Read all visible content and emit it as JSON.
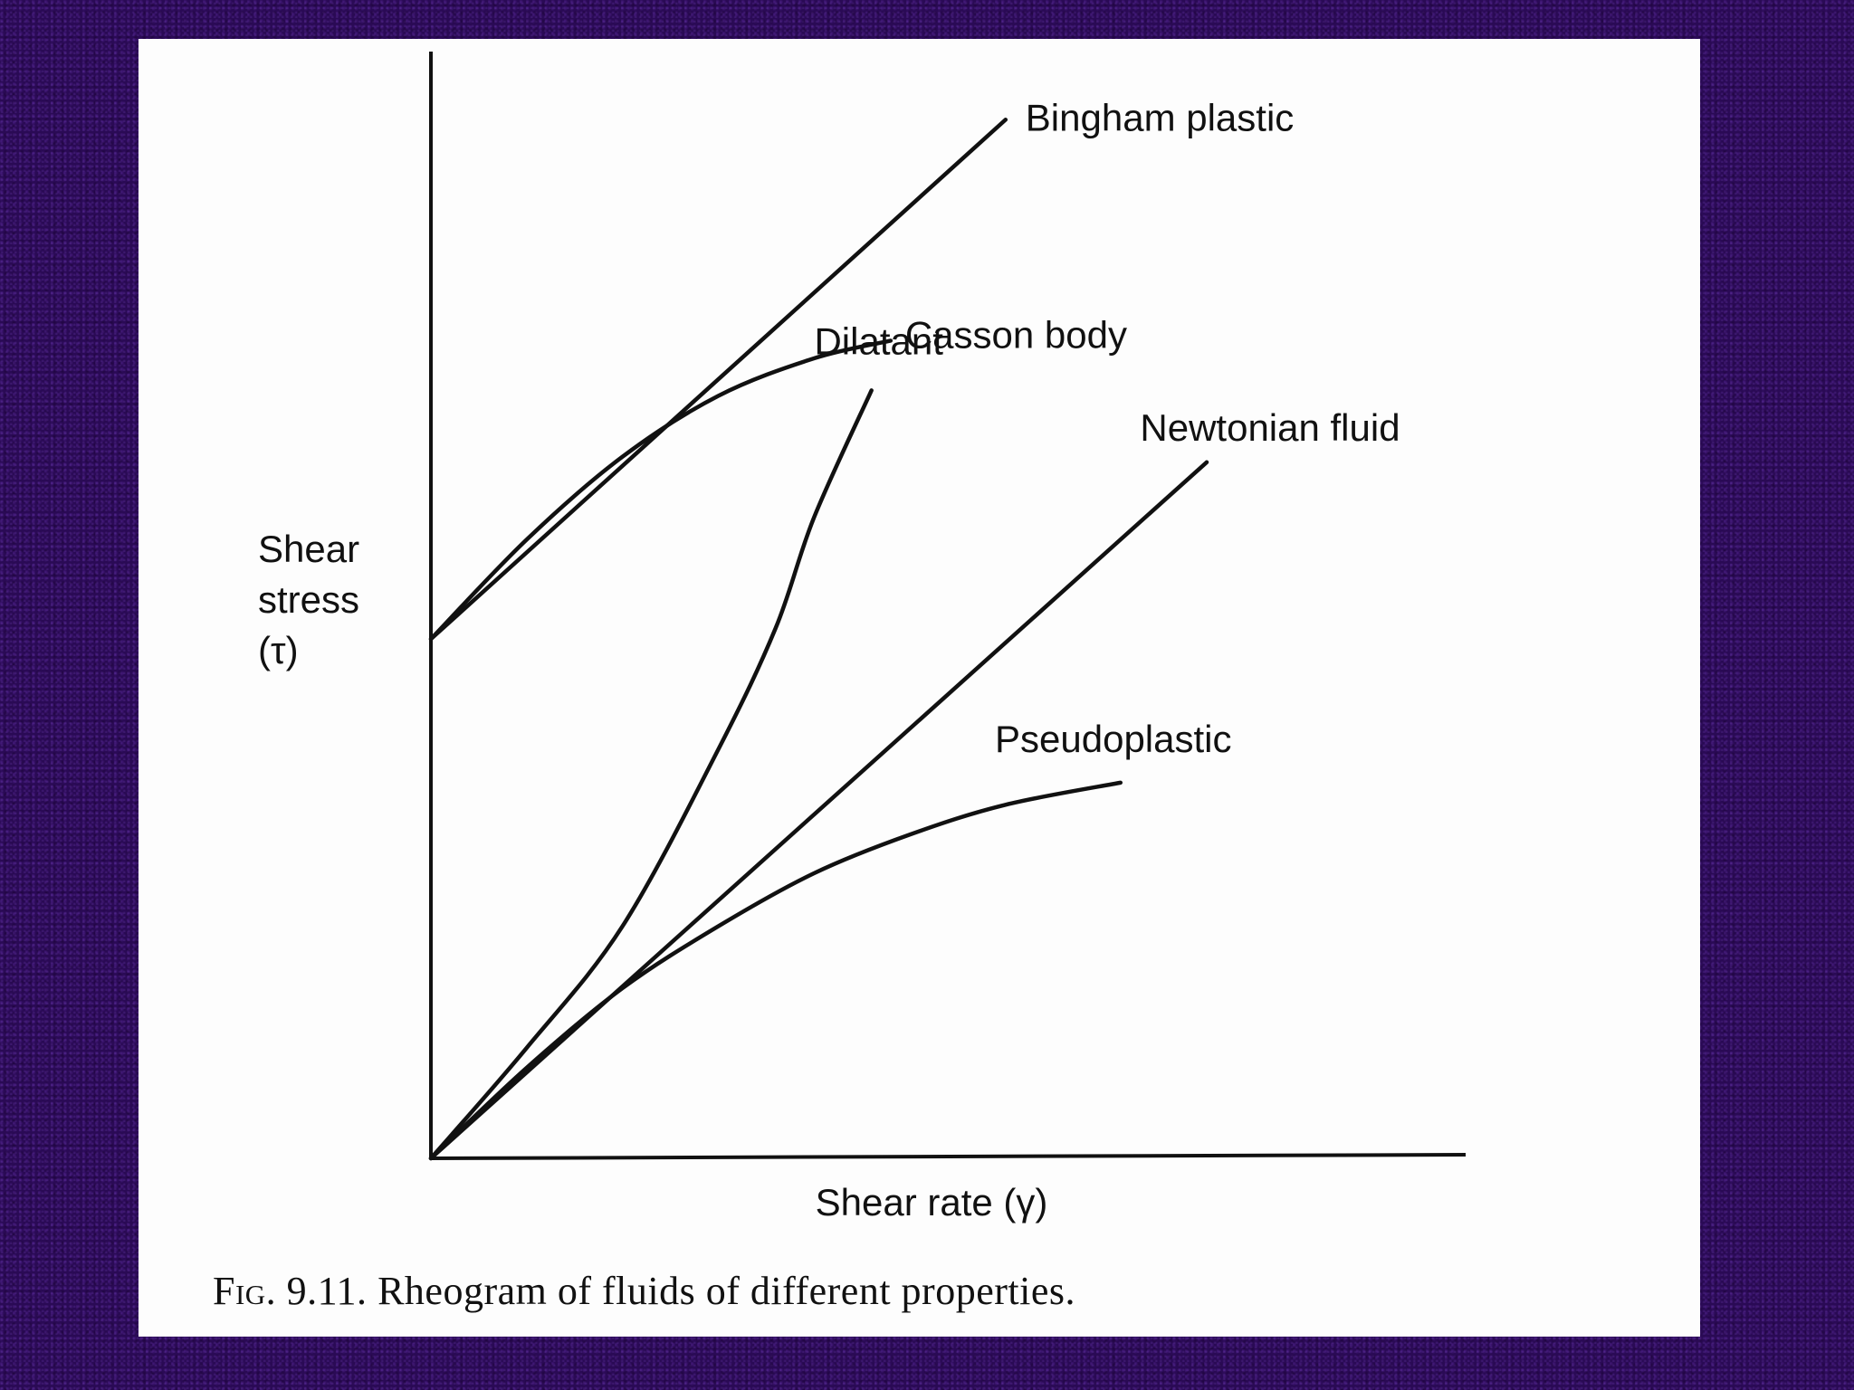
{
  "chart_data": {
    "type": "line",
    "title": "",
    "xlabel": "Shear rate (γ)",
    "ylabel_lines": [
      "Shear",
      "stress",
      "(τ)"
    ],
    "xlim": [
      0,
      100
    ],
    "ylim": [
      0,
      100
    ],
    "grid": false,
    "legend": "none (curves labeled directly at their ends)",
    "series": [
      {
        "name": "Bingham plastic",
        "points": [
          [
            0,
            47
          ],
          [
            60,
            94
          ]
        ]
      },
      {
        "name": "Casson body",
        "points": [
          [
            0,
            47
          ],
          [
            10,
            56
          ],
          [
            20,
            63.5
          ],
          [
            30,
            69
          ],
          [
            40,
            72.4
          ],
          [
            48,
            74
          ]
        ]
      },
      {
        "name": "Dilatant",
        "points": [
          [
            0,
            0
          ],
          [
            10,
            10
          ],
          [
            20,
            21
          ],
          [
            30,
            37
          ],
          [
            36,
            48
          ],
          [
            40,
            58
          ],
          [
            46,
            69.5
          ]
        ]
      },
      {
        "name": "Newtonian fluid",
        "points": [
          [
            0,
            0
          ],
          [
            81,
            63
          ]
        ]
      },
      {
        "name": "Pseudoplastic",
        "points": [
          [
            0,
            0
          ],
          [
            10,
            8.2
          ],
          [
            20,
            15.4
          ],
          [
            30,
            21
          ],
          [
            40,
            25.8
          ],
          [
            50,
            29.3
          ],
          [
            60,
            32
          ],
          [
            72,
            34
          ]
        ]
      }
    ]
  },
  "caption": {
    "fig_label": "Fig. 9.11.",
    "text": "Rheogram of fluids of different properties."
  }
}
